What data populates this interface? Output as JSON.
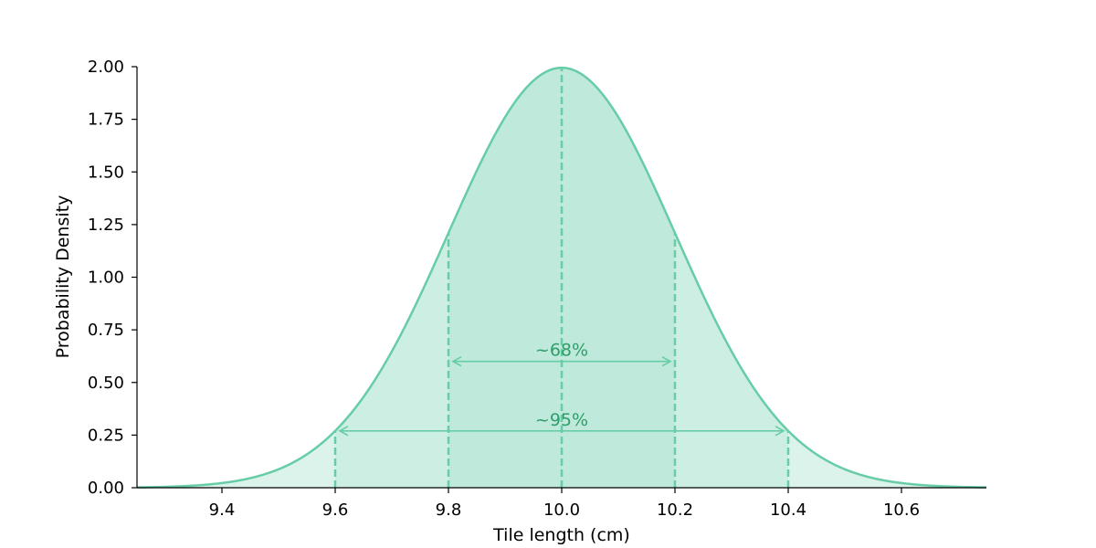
{
  "chart_data": {
    "type": "area",
    "xlabel": "Tile length (cm)",
    "ylabel": "Probability Density",
    "xlim": [
      9.25,
      10.75
    ],
    "ylim": [
      0,
      2.0
    ],
    "xticks": [
      "9.4",
      "9.6",
      "9.8",
      "10.0",
      "10.2",
      "10.4",
      "10.6"
    ],
    "yticks": [
      "0.00",
      "0.25",
      "0.50",
      "0.75",
      "1.00",
      "1.25",
      "1.50",
      "1.75",
      "2.00"
    ],
    "grid": false,
    "distribution": {
      "kind": "normal",
      "mean": 10.0,
      "std": 0.2
    },
    "reference_lines_x": [
      9.6,
      9.8,
      10.0,
      10.2,
      10.4
    ],
    "intervals": [
      {
        "label": "~68%",
        "from": 9.8,
        "to": 10.2,
        "arrow_y": 0.6
      },
      {
        "label": "~95%",
        "from": 9.6,
        "to": 10.4,
        "arrow_y": 0.27
      }
    ],
    "colors": {
      "curve": "#66cda6",
      "fill_outer": "#dcf3eb",
      "fill_mid": "#cdeee2",
      "fill_inner": "#bfe9db",
      "annotation_text": "#2e9e6a"
    }
  }
}
